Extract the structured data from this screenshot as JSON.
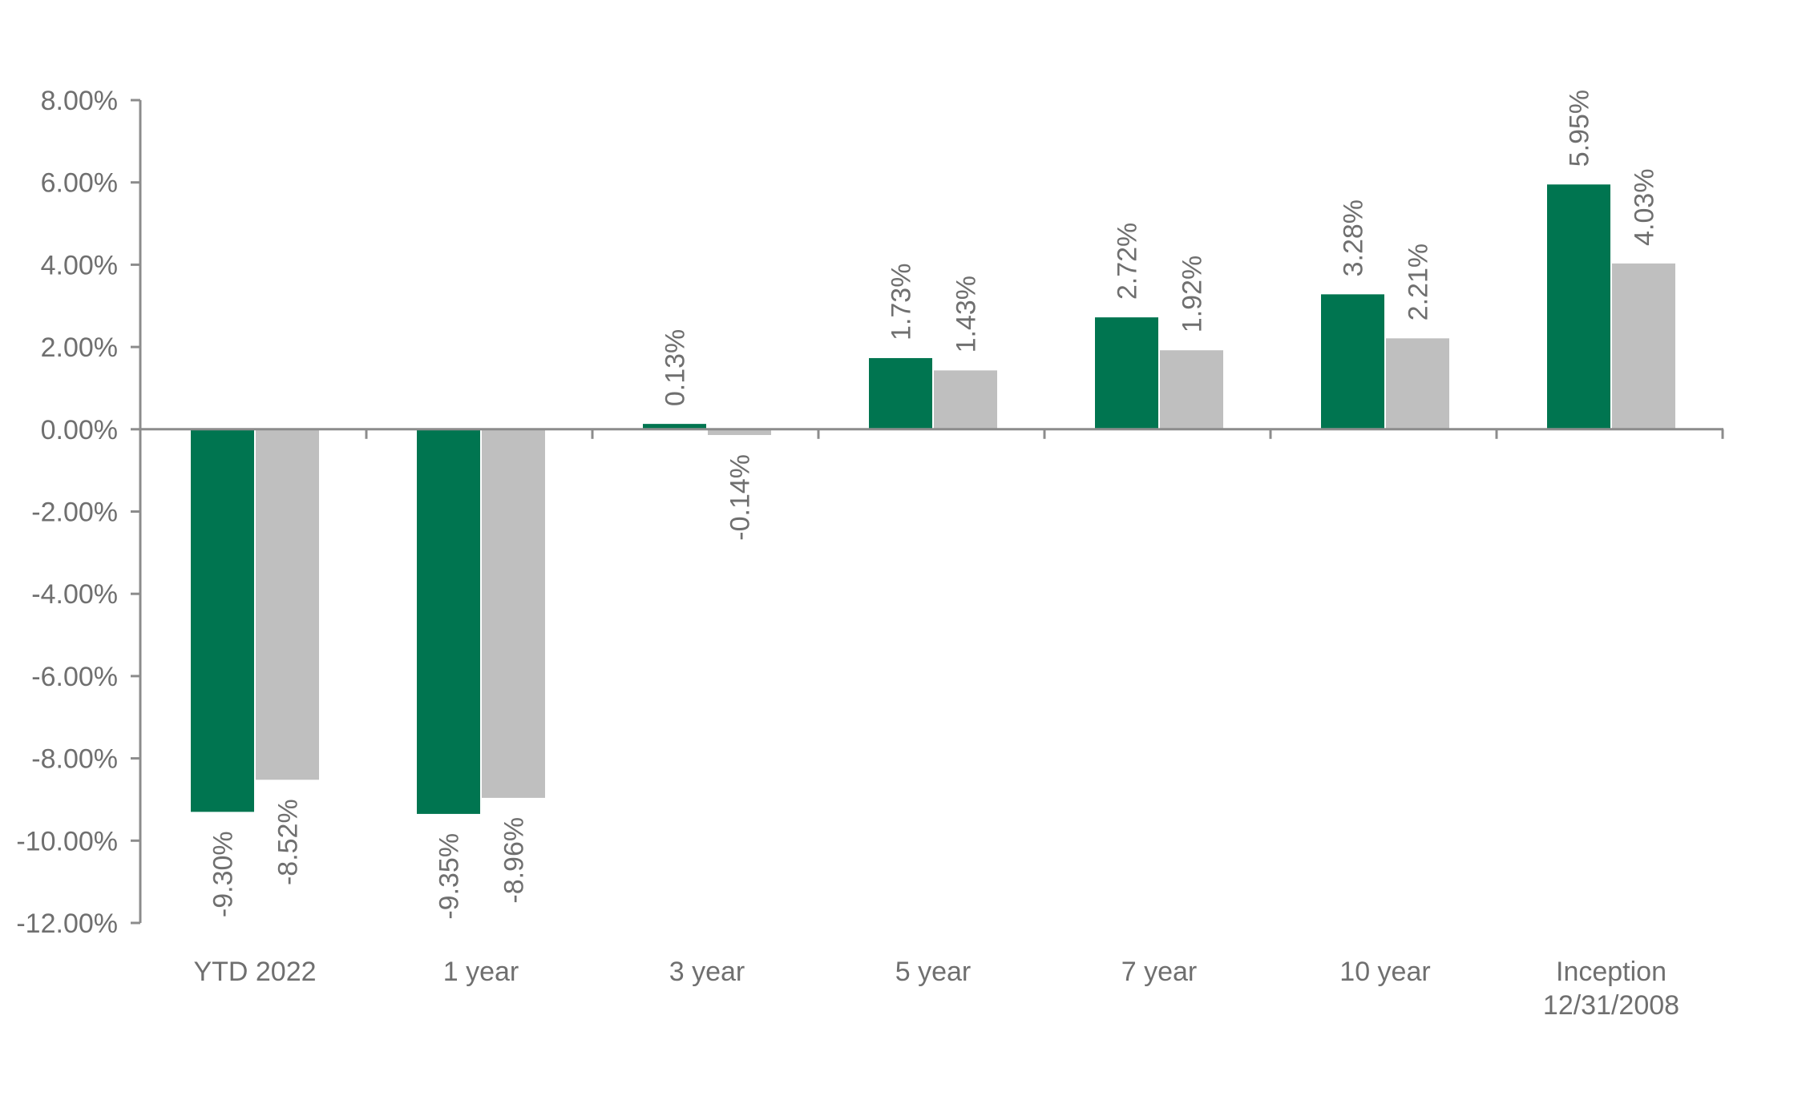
{
  "chart_data": {
    "type": "bar",
    "categories": [
      [
        "YTD 2022"
      ],
      [
        "1 year"
      ],
      [
        "3 year"
      ],
      [
        "5 year"
      ],
      [
        "7 year"
      ],
      [
        "10 year"
      ],
      [
        "Inception",
        "12/31/2008"
      ]
    ],
    "series": [
      {
        "values": [
          -9.3,
          -9.35,
          0.13,
          1.73,
          2.72,
          3.28,
          5.95
        ],
        "labels": [
          "-9.30%",
          "-9.35%",
          "0.13%",
          "1.73%",
          "2.72%",
          "3.28%",
          "5.95%"
        ],
        "color": "#007550"
      },
      {
        "values": [
          -8.52,
          -8.96,
          -0.14,
          1.43,
          1.92,
          2.21,
          4.03
        ],
        "labels": [
          "-8.52%",
          "-8.96%",
          "-0.14%",
          "1.43%",
          "1.92%",
          "2.21%",
          "4.03%"
        ],
        "color": "#bfbfbf"
      }
    ],
    "yticks": [
      8,
      6,
      4,
      2,
      0,
      -2,
      -4,
      -6,
      -8,
      -10,
      -12
    ],
    "ytick_labels": [
      "8.00%",
      "6.00%",
      "4.00%",
      "2.00%",
      "0.00%",
      "-2.00%",
      "-4.00%",
      "-6.00%",
      "-8.00%",
      "-10.00%",
      "-12.00%"
    ],
    "ylim": [
      -12,
      8
    ],
    "title": "",
    "xlabel": "",
    "ylabel": "",
    "grid": false,
    "legend": "none",
    "axis_color": "#8c8c8c",
    "text_color": "#6f6f6f"
  }
}
